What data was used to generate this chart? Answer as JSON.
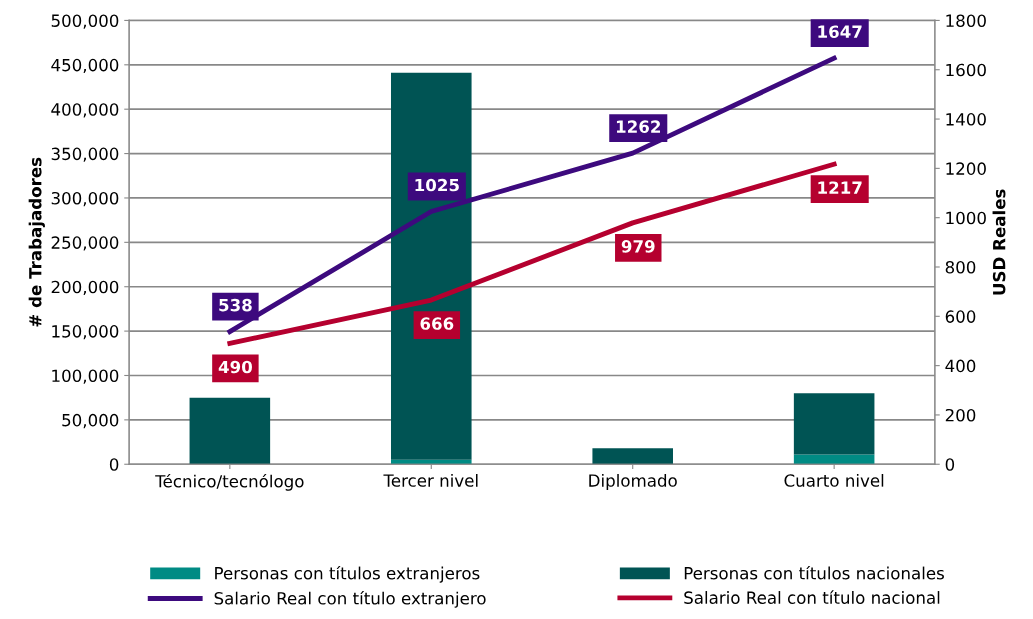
{
  "chart_data": {
    "type": "bar",
    "stacked": true,
    "categories": [
      "Técnico/tecnólogo",
      "Tercer nivel",
      "Diplomado",
      "Cuarto nivel"
    ],
    "ylabel": "# de Trabajadores",
    "y2label": "USD Reales",
    "ylim": [
      0,
      500000
    ],
    "yticks": [
      {
        "value": 0,
        "label": "0"
      },
      {
        "value": 50000,
        "label": "50,000"
      },
      {
        "value": 100000,
        "label": "100,000"
      },
      {
        "value": 150000,
        "label": "150,000"
      },
      {
        "value": 200000,
        "label": "200,000"
      },
      {
        "value": 250000,
        "label": "250,000"
      },
      {
        "value": 300000,
        "label": "300,000"
      },
      {
        "value": 350000,
        "label": "350,000"
      },
      {
        "value": 400000,
        "label": "400,000"
      },
      {
        "value": 450000,
        "label": "450,000"
      },
      {
        "value": 500000,
        "label": "500,000"
      }
    ],
    "y2lim": [
      0,
      1800
    ],
    "y2ticks": [
      0,
      200,
      400,
      600,
      800,
      1000,
      1200,
      1400,
      1600,
      1800
    ],
    "grid": "y",
    "legend": "bottom",
    "series": [
      {
        "name": "Personas con títulos extranjeros",
        "color": "#008b84",
        "values": [
          0,
          5000,
          0,
          11000
        ]
      },
      {
        "name": "Personas con títulos nacionales",
        "color": "#005454",
        "values": [
          75000,
          436000,
          18000,
          69000
        ]
      },
      {
        "name": "Salario Real con título extranjero",
        "type": "line",
        "axis": "y2",
        "color": "#3d0a7e",
        "values": [
          538,
          1025,
          1262,
          1647
        ],
        "value_labels": [
          "538",
          "1025",
          "1262",
          "1647"
        ]
      },
      {
        "name": "Salario Real con título nacional",
        "type": "line",
        "axis": "y2",
        "color": "#b5002f",
        "values": [
          490,
          666,
          979,
          1217
        ],
        "value_labels": [
          "490",
          "666",
          "979",
          "1217"
        ]
      }
    ]
  }
}
